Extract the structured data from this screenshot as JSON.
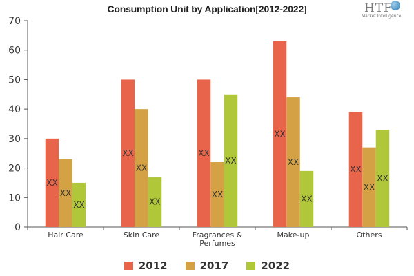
{
  "chart_data": {
    "type": "bar",
    "title": "Consumption Unit by  Application[2012-2022]",
    "categories": [
      "Hair Care",
      "Skin Care",
      "Fragrances & Perfumes",
      "Make-up",
      "Others"
    ],
    "category_lines": [
      [
        "Hair Care"
      ],
      [
        "Skin Care"
      ],
      [
        "Fragrances &",
        "Perfumes"
      ],
      [
        "Make-up"
      ],
      [
        "Others"
      ]
    ],
    "series": [
      {
        "name": "2012",
        "color": "#e8644a",
        "values": [
          30,
          50,
          50,
          63,
          39
        ]
      },
      {
        "name": "2017",
        "color": "#d4a244",
        "values": [
          23,
          40,
          22,
          44,
          27
        ]
      },
      {
        "name": "2022",
        "color": "#b1c73a",
        "values": [
          15,
          17,
          45,
          19,
          33
        ]
      }
    ],
    "data_label_text": "XX",
    "ylim": [
      0,
      70
    ],
    "yticks": [
      0,
      10,
      20,
      30,
      40,
      50,
      60,
      70
    ],
    "grid": false,
    "legend_position": "bottom",
    "xlabel": "",
    "ylabel": ""
  },
  "logo": {
    "mark": "HTF",
    "sub": "Market Intelligence"
  }
}
